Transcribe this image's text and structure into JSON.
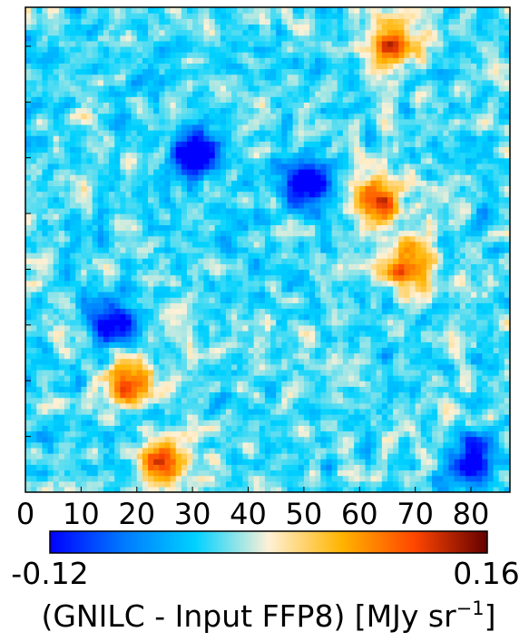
{
  "chart_data": {
    "type": "heatmap",
    "title": "",
    "xlabel": "",
    "ylabel": "",
    "xlim": [
      0,
      87
    ],
    "ylim": [
      0,
      87
    ],
    "x_ticks": [
      0,
      10,
      20,
      30,
      40,
      50,
      60,
      70,
      80
    ],
    "x_tick_labels": [
      "0",
      "10",
      "20",
      "30",
      "40",
      "50",
      "60",
      "70",
      "80"
    ],
    "y_tick_labels": [],
    "grid": false,
    "colormap": "planck",
    "colormap_stops": [
      "#0000ff",
      "#0078ff",
      "#00d2ff",
      "#fff1d6",
      "#ffb400",
      "#ff4600",
      "#640000"
    ],
    "colorbar": {
      "orientation": "horizontal",
      "vmin": -0.12,
      "vmax": 0.16,
      "min_label": "-0.12",
      "max_label": "0.16",
      "label_main": "(GNILC - Input FFP8) [MJy sr",
      "label_exp": "−1",
      "label_close": "]"
    },
    "grid_size": [
      87,
      87
    ],
    "value_range": [
      -0.12,
      0.16
    ],
    "hotspots": [
      {
        "x": 65,
        "y": 80,
        "value": 0.12
      },
      {
        "x": 18,
        "y": 19,
        "value": 0.13
      },
      {
        "x": 24,
        "y": 5,
        "value": 0.14
      },
      {
        "x": 63,
        "y": 52,
        "value": 0.08
      },
      {
        "x": 68,
        "y": 40,
        "value": 0.07
      }
    ],
    "coldspots": [
      {
        "x": 50,
        "y": 55,
        "value": -0.1
      },
      {
        "x": 15,
        "y": 30,
        "value": -0.09
      },
      {
        "x": 80,
        "y": 5,
        "value": -0.1
      },
      {
        "x": 30,
        "y": 60,
        "value": -0.09
      }
    ]
  }
}
